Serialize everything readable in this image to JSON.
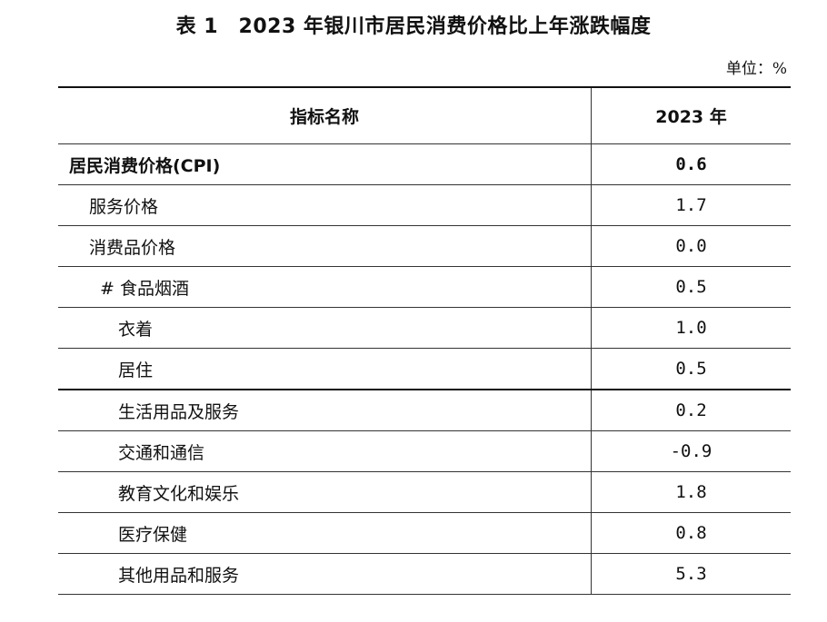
{
  "title": "表 1　2023 年银川市居民消费价格比上年涨跌幅度",
  "unit": "单位：%",
  "header": {
    "name": "指标名称",
    "year": "2023 年"
  },
  "rows": [
    {
      "name": "居民消费价格(CPI)",
      "value": "0.6"
    },
    {
      "name": "服务价格",
      "value": "1.7"
    },
    {
      "name": "消费品价格",
      "value": "0.0"
    },
    {
      "name": "# 食品烟酒",
      "value": "0.5"
    },
    {
      "name": "衣着",
      "value": "1.0"
    },
    {
      "name": "居住",
      "value": "0.5"
    },
    {
      "name": "生活用品及服务",
      "value": "0.2"
    },
    {
      "name": "交通和通信",
      "value": "-0.9"
    },
    {
      "name": "教育文化和娱乐",
      "value": "1.8"
    },
    {
      "name": "医疗保健",
      "value": "0.8"
    },
    {
      "name": "其他用品和服务",
      "value": "5.3"
    }
  ]
}
